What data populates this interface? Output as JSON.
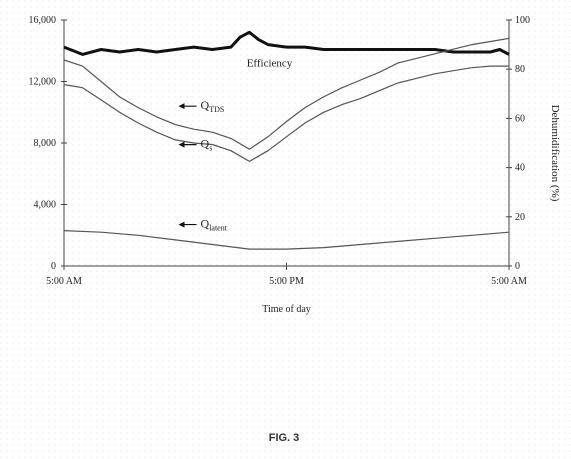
{
  "figure": {
    "caption": "FIG. 3"
  },
  "chart_data": {
    "type": "line",
    "xlabel": "Time of day",
    "x_ticks": [
      "5:00 AM",
      "5:00 PM",
      "5:00 AM"
    ],
    "x_range_hours": [
      0,
      24
    ],
    "y_left": {
      "ticks": [
        "0",
        "4,000",
        "8,000",
        "12,000",
        "16,000"
      ],
      "range": [
        0,
        16000
      ]
    },
    "y_right": {
      "label": "Dehumidification (%)",
      "ticks": [
        "0",
        "20",
        "40",
        "60",
        "80",
        "100"
      ],
      "range": [
        0,
        100
      ]
    },
    "grid": true,
    "series": [
      {
        "name": "Efficiency",
        "axis": "right",
        "style": "heavy",
        "x": [
          0,
          1,
          2,
          3,
          4,
          5,
          6,
          7,
          8,
          9,
          9.5,
          10,
          10.5,
          11,
          12,
          13,
          14,
          15,
          16,
          17,
          18,
          19,
          20,
          21,
          22,
          23,
          23.5,
          24
        ],
        "y": [
          89,
          86,
          88,
          87,
          88,
          87,
          88,
          89,
          88,
          89,
          93,
          95,
          92,
          90,
          89,
          89,
          88,
          88,
          88,
          88,
          88,
          88,
          88,
          87,
          87,
          87,
          88,
          86
        ]
      },
      {
        "name": "QTDS",
        "axis": "left",
        "x": [
          0,
          1,
          2,
          3,
          4,
          5,
          6,
          7,
          8,
          9,
          10,
          11,
          12,
          13,
          14,
          15,
          16,
          17,
          18,
          19,
          20,
          21,
          22,
          23,
          24
        ],
        "y": [
          13400,
          13000,
          12000,
          11000,
          10300,
          9700,
          9200,
          8900,
          8700,
          8300,
          7600,
          8400,
          9400,
          10300,
          11000,
          11600,
          12100,
          12600,
          13200,
          13500,
          13800,
          14100,
          14400,
          14600,
          14800
        ]
      },
      {
        "name": "Qs",
        "axis": "left",
        "x": [
          0,
          1,
          2,
          3,
          4,
          5,
          6,
          7,
          8,
          9,
          10,
          11,
          12,
          13,
          14,
          15,
          16,
          17,
          18,
          19,
          20,
          21,
          22,
          23,
          24
        ],
        "y": [
          11800,
          11600,
          10800,
          10000,
          9300,
          8700,
          8200,
          8000,
          7900,
          7500,
          6800,
          7500,
          8400,
          9300,
          10000,
          10500,
          10900,
          11400,
          11900,
          12200,
          12500,
          12700,
          12900,
          13000,
          13000
        ]
      },
      {
        "name": "Qlatent",
        "axis": "left",
        "x": [
          0,
          2,
          4,
          6,
          8,
          10,
          12,
          14,
          16,
          18,
          20,
          22,
          24
        ],
        "y": [
          2300,
          2200,
          2000,
          1700,
          1400,
          1100,
          1100,
          1200,
          1400,
          1600,
          1800,
          2000,
          2200
        ]
      }
    ],
    "annotations": [
      {
        "text": "Efficiency",
        "series": "Efficiency",
        "at_x": 10.5,
        "at_y_right": 81
      },
      {
        "main": "Q",
        "sub": "TDS",
        "series": "QTDS",
        "at_x": 6.5,
        "at_y_left": 10200
      },
      {
        "main": "Q",
        "sub": "s",
        "series": "Qs",
        "at_x": 6.5,
        "at_y_left": 7700
      },
      {
        "main": "Q",
        "sub": "latent",
        "series": "Qlatent",
        "at_x": 6.5,
        "at_y_left": 2500
      }
    ]
  }
}
